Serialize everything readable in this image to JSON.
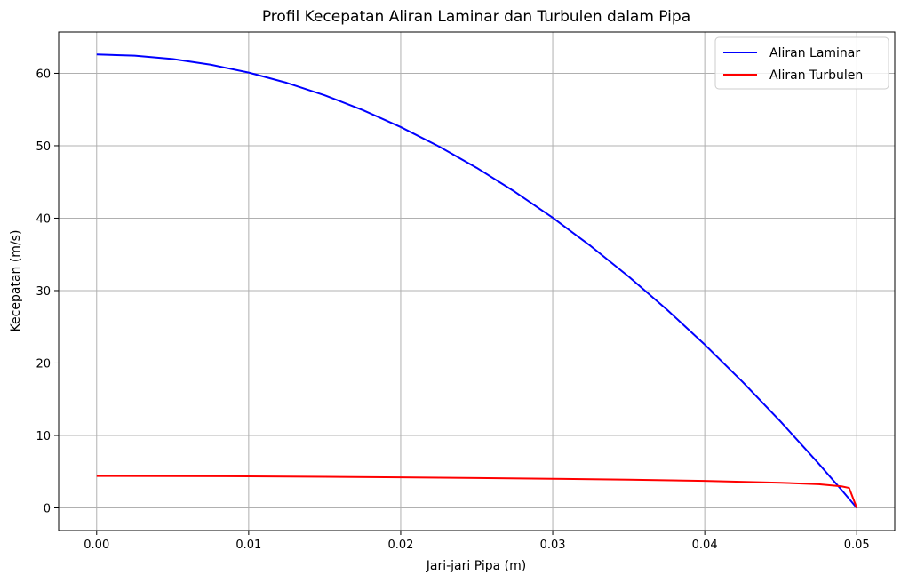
{
  "chart_data": {
    "type": "line",
    "title": "Profil Kecepatan Aliran Laminar dan Turbulen dalam Pipa",
    "xlabel": "Jari-jari Pipa (m)",
    "ylabel": "Kecepatan (m/s)",
    "xlim": [
      -0.0025,
      0.0525
    ],
    "ylim": [
      -3.13,
      65.7
    ],
    "xticks": [
      0.0,
      0.01,
      0.02,
      0.03,
      0.04,
      0.05
    ],
    "xtick_labels": [
      "0.00",
      "0.01",
      "0.02",
      "0.03",
      "0.04",
      "0.05"
    ],
    "yticks": [
      0,
      10,
      20,
      30,
      40,
      50,
      60
    ],
    "ytick_labels": [
      "0",
      "10",
      "20",
      "30",
      "40",
      "50",
      "60"
    ],
    "grid": true,
    "legend_position": "top-right",
    "series": [
      {
        "name": "Aliran Laminar",
        "color": "#0000ff",
        "x": [
          0.0,
          0.0025,
          0.005,
          0.0075,
          0.01,
          0.0125,
          0.015,
          0.0175,
          0.02,
          0.0225,
          0.025,
          0.0275,
          0.03,
          0.0325,
          0.035,
          0.0375,
          0.04,
          0.0425,
          0.045,
          0.0475,
          0.049,
          0.05
        ],
        "y": [
          62.6,
          62.44,
          61.97,
          61.19,
          60.1,
          58.69,
          56.97,
          54.93,
          52.58,
          49.92,
          46.95,
          43.66,
          40.06,
          36.15,
          31.93,
          27.39,
          22.54,
          17.37,
          11.89,
          6.1,
          2.48,
          0.0
        ]
      },
      {
        "name": "Aliran Turbulen",
        "color": "#ff0000",
        "x": [
          0.0,
          0.005,
          0.01,
          0.015,
          0.02,
          0.025,
          0.03,
          0.035,
          0.04,
          0.045,
          0.0475,
          0.049,
          0.0495,
          0.05
        ],
        "y": [
          4.4,
          4.39,
          4.35,
          4.29,
          4.22,
          4.13,
          4.02,
          3.89,
          3.72,
          3.47,
          3.26,
          2.97,
          2.75,
          0.0
        ]
      }
    ]
  }
}
